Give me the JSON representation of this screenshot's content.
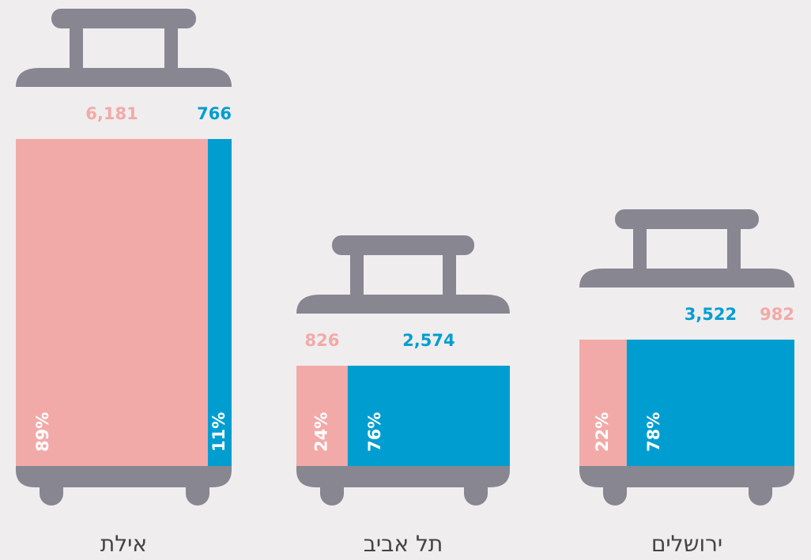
{
  "chart_data": {
    "type": "suitcase",
    "categories": [
      "אילת",
      "תל אביב",
      "ירושלים"
    ],
    "frame_color": "#878691",
    "series": [
      {
        "color": "#f2aaa8",
        "values": [
          6181,
          826,
          982
        ],
        "value_labels": [
          "6,181",
          "826",
          "982"
        ],
        "shares": [
          89,
          24,
          22
        ],
        "share_labels": [
          "89%",
          "24%",
          "22%"
        ]
      },
      {
        "color": "#009ed0",
        "values": [
          766,
          2574,
          3522
        ],
        "value_labels": [
          "766",
          "2,574",
          "3,522"
        ],
        "shares": [
          11,
          76,
          78
        ],
        "share_labels": [
          "11%",
          "76%",
          "78%"
        ]
      }
    ]
  }
}
